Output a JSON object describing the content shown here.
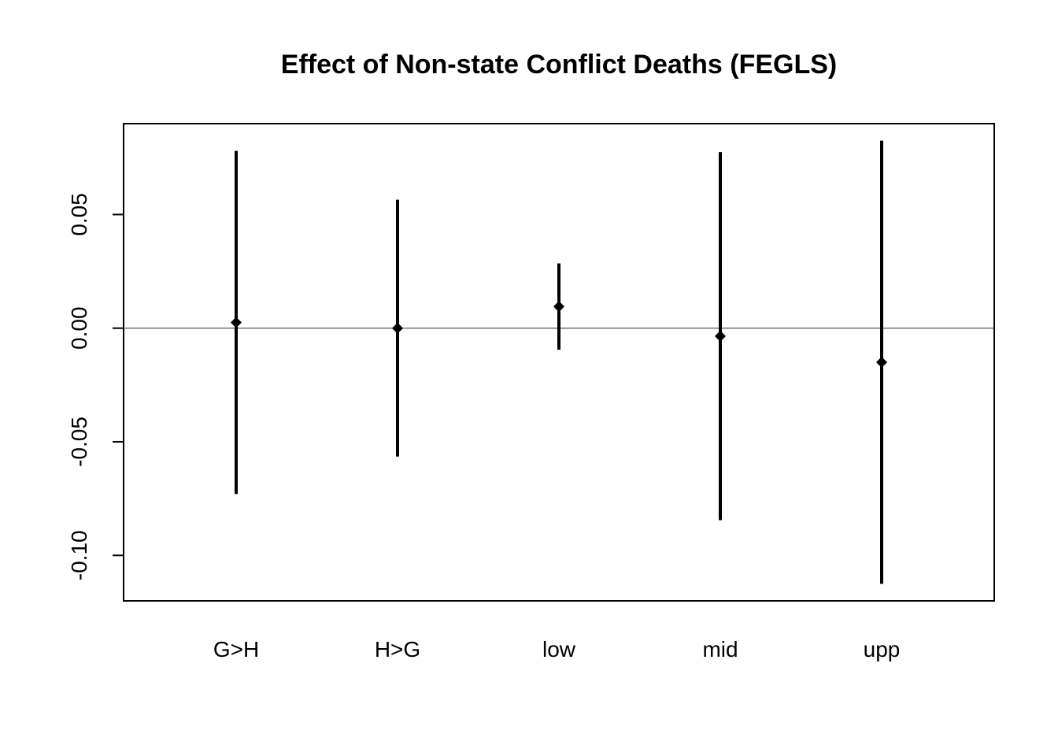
{
  "chart_data": {
    "type": "errorbar",
    "title": "Effect of Non-state Conflict Deaths (FEGLS)",
    "xlabel": "",
    "ylabel": "",
    "categories": [
      "G>H",
      "H>G",
      "low",
      "mid",
      "upp"
    ],
    "estimates": [
      0.0025,
      0.0,
      0.0095,
      -0.0035,
      -0.015
    ],
    "lower": [
      -0.073,
      -0.0565,
      -0.0095,
      -0.0845,
      -0.1125
    ],
    "upper": [
      0.078,
      0.0565,
      0.0285,
      0.0775,
      0.0825
    ],
    "y_ticks": [
      0.05,
      0.0,
      -0.05,
      -0.1
    ],
    "y_tick_labels": [
      "0.05",
      "0.00",
      "-0.05",
      "-0.10"
    ],
    "ylim": [
      -0.12,
      0.09
    ],
    "reference_line": 0,
    "grid": false,
    "legend": "none",
    "colors": {
      "marks": "#000000",
      "frame": "#000000"
    }
  }
}
